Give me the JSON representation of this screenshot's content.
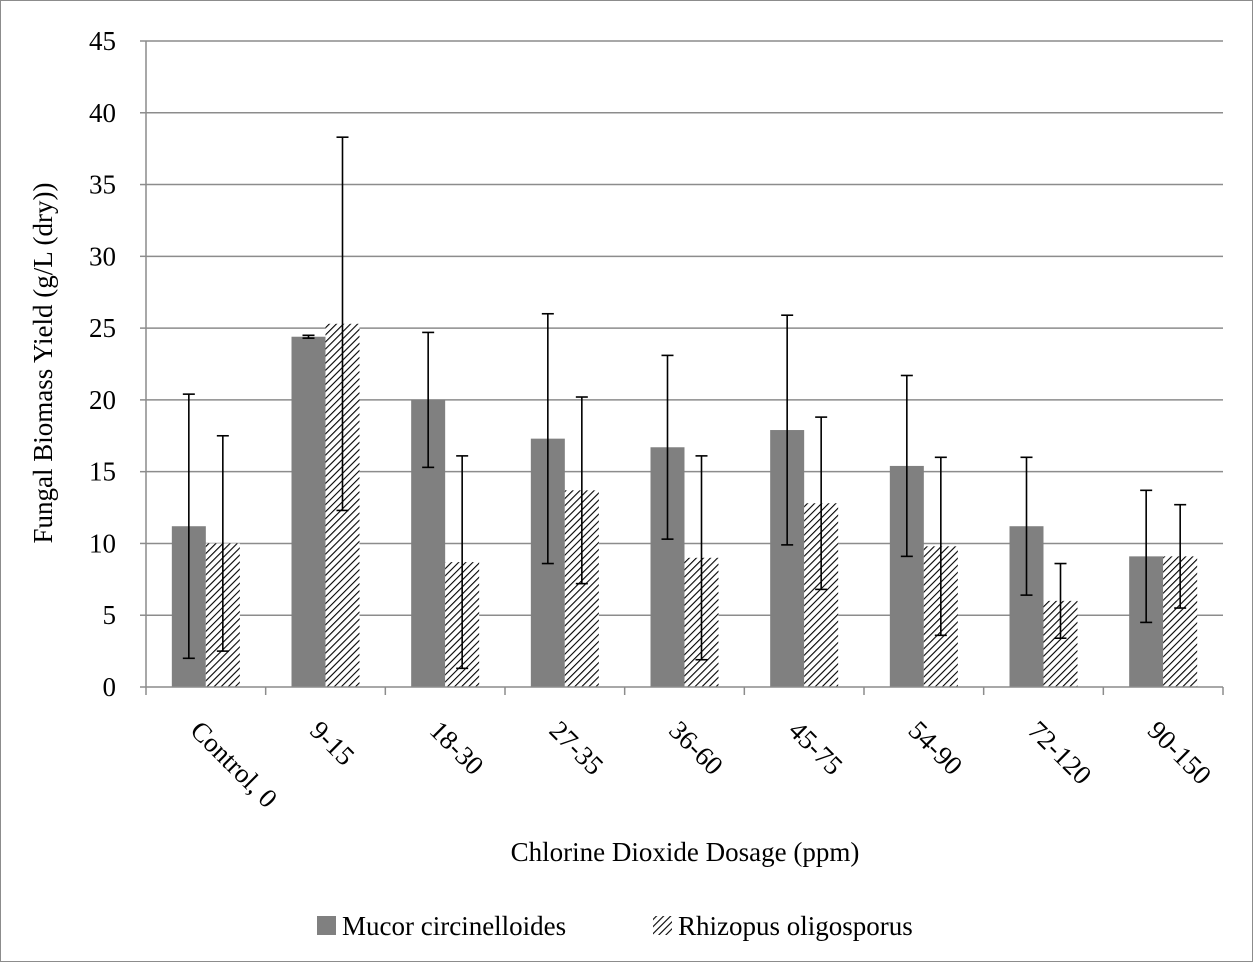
{
  "chart_data": {
    "type": "bar",
    "categories": [
      "Control, 0",
      "9-15",
      "18-30",
      "27-35",
      "36-60",
      "45-75",
      "54-90",
      "72-120",
      "90-150"
    ],
    "series": [
      {
        "name": "Mucor circinelloides",
        "color": "#808080",
        "pattern": "solid",
        "values": [
          11.2,
          24.4,
          20.0,
          17.3,
          16.7,
          17.9,
          15.4,
          11.2,
          9.1
        ],
        "error": [
          9.2,
          0.1,
          4.7,
          8.7,
          6.4,
          8.0,
          6.3,
          4.8,
          4.6
        ]
      },
      {
        "name": "Rhizopus oligosporus",
        "color": "#000000",
        "pattern": "diagonal-hatch",
        "values": [
          10.0,
          25.3,
          8.7,
          13.7,
          9.0,
          12.8,
          9.8,
          6.0,
          9.1
        ],
        "error": [
          7.5,
          13.0,
          7.4,
          6.5,
          7.1,
          6.0,
          6.2,
          2.6,
          3.6
        ]
      }
    ],
    "xlabel": "Chlorine Dioxide Dosage (ppm)",
    "ylabel": "Fungal Biomass Yield (g/L (dry))",
    "ylim": [
      0,
      45
    ],
    "yticks": [
      "0",
      "5",
      "10",
      "15",
      "20",
      "25",
      "30",
      "35",
      "40",
      "45"
    ],
    "grid": true,
    "legend_position": "bottom"
  }
}
